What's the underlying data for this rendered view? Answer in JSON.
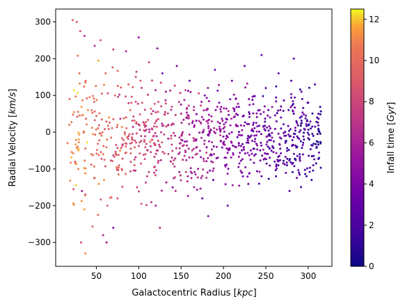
{
  "chart_data": {
    "type": "scatter",
    "title": "",
    "xlabel": "Galactocentric Radius [kpc]",
    "ylabel": "Radial Velocity [km/s]",
    "xlim": [
      2,
      328
    ],
    "ylim": [
      -365,
      335
    ],
    "xticks": [
      50,
      100,
      150,
      200,
      250,
      300
    ],
    "yticks": [
      -300,
      -200,
      -100,
      0,
      100,
      200,
      300
    ],
    "grid": false,
    "colormap": "plasma",
    "colorbar": {
      "label": "Infall time [Gyr]",
      "range": [
        0,
        12.5
      ],
      "ticks": [
        0,
        2,
        4,
        6,
        8,
        10,
        12
      ]
    },
    "point_count": 1000,
    "point_description": "approx. 1000 satellite points; infall time decreases with radius (yellow/orange near 20-90 kpc, magenta 90-200 kpc, purple/indigo 200-315 kpc); velocity spread widest at small radius (-330 to 305 km/s), narrowing to about -150 to 150 km/s at large radius",
    "points": [
      [
        22,
        305,
        9.5
      ],
      [
        27,
        300,
        9.0
      ],
      [
        31,
        275,
        8.5
      ],
      [
        36,
        262,
        6.5
      ],
      [
        28,
        208,
        10.5
      ],
      [
        30,
        160,
        10.0
      ],
      [
        37,
        135,
        11.0
      ],
      [
        42,
        95,
        10.8
      ],
      [
        18,
        20,
        10.2
      ],
      [
        16,
        -30,
        10.6
      ],
      [
        25,
        -80,
        9.8
      ],
      [
        23,
        -155,
        8.8
      ],
      [
        33,
        -160,
        5.5
      ],
      [
        37,
        -170,
        6.0
      ],
      [
        36,
        -210,
        11.5
      ],
      [
        32,
        -300,
        8.2
      ],
      [
        37,
        -330,
        11.0
      ],
      [
        40,
        60,
        11.2
      ],
      [
        44,
        -60,
        10.9
      ],
      [
        48,
        -125,
        9.7
      ],
      [
        52,
        -225,
        10.0
      ],
      [
        48,
        235,
        6.8
      ],
      [
        55,
        250,
        9.0
      ],
      [
        61,
        160,
        10.2
      ],
      [
        65,
        40,
        11.2
      ],
      [
        58,
        -60,
        10.5
      ],
      [
        63,
        -200,
        9.0
      ],
      [
        58,
        -280,
        6.5
      ],
      [
        62,
        -300,
        5.5
      ],
      [
        70,
        225,
        7.5
      ],
      [
        72,
        100,
        10.0
      ],
      [
        75,
        20,
        10.4
      ],
      [
        78,
        -50,
        11.0
      ],
      [
        80,
        -100,
        9.6
      ],
      [
        75,
        -180,
        8.4
      ],
      [
        70,
        -260,
        4.5
      ],
      [
        85,
        220,
        6.5
      ],
      [
        88,
        130,
        9.5
      ],
      [
        90,
        60,
        10.3
      ],
      [
        92,
        -20,
        10.0
      ],
      [
        95,
        -90,
        9.6
      ],
      [
        98,
        -150,
        8.2
      ],
      [
        100,
        258,
        5.0
      ],
      [
        102,
        140,
        9.0
      ],
      [
        104,
        80,
        8.8
      ],
      [
        106,
        5,
        9.2
      ],
      [
        108,
        -60,
        9.0
      ],
      [
        110,
        -120,
        7.5
      ],
      [
        112,
        190,
        8.2
      ],
      [
        115,
        50,
        7.6
      ],
      [
        118,
        -30,
        8.0
      ],
      [
        120,
        -200,
        6.3
      ],
      [
        122,
        228,
        4.5
      ],
      [
        125,
        -260,
        6.5
      ],
      [
        128,
        160,
        4.0
      ],
      [
        132,
        110,
        5.2
      ],
      [
        135,
        20,
        6.6
      ],
      [
        138,
        -80,
        6.0
      ],
      [
        140,
        -150,
        4.5
      ],
      [
        145,
        180,
        4.3
      ],
      [
        150,
        75,
        5.5
      ],
      [
        152,
        0,
        6.4
      ],
      [
        155,
        -50,
        6.8
      ],
      [
        158,
        -120,
        5.8
      ],
      [
        160,
        140,
        3.5
      ],
      [
        165,
        60,
        6.6
      ],
      [
        168,
        -20,
        6.2
      ],
      [
        170,
        -100,
        5.2
      ],
      [
        175,
        -180,
        2.8
      ],
      [
        178,
        100,
        4.2
      ],
      [
        180,
        30,
        6.0
      ],
      [
        185,
        -60,
        5.0
      ],
      [
        188,
        -130,
        3.0
      ],
      [
        190,
        170,
        3.8
      ],
      [
        195,
        80,
        4.1
      ],
      [
        200,
        10,
        4.4
      ],
      [
        202,
        -90,
        3.4
      ],
      [
        205,
        -200,
        2.2
      ],
      [
        210,
        140,
        3.2
      ],
      [
        215,
        50,
        4.6
      ],
      [
        218,
        -30,
        5.0
      ],
      [
        222,
        -110,
        3.3
      ],
      [
        225,
        180,
        2.6
      ],
      [
        230,
        90,
        3.9
      ],
      [
        235,
        20,
        4.1
      ],
      [
        238,
        -60,
        3.0
      ],
      [
        242,
        -140,
        2.4
      ],
      [
        245,
        210,
        3.3
      ],
      [
        250,
        120,
        2.7
      ],
      [
        255,
        40,
        3.5
      ],
      [
        258,
        -40,
        2.2
      ],
      [
        262,
        -120,
        1.9
      ],
      [
        265,
        160,
        3.1
      ],
      [
        268,
        70,
        2.5
      ],
      [
        272,
        -10,
        3.2
      ],
      [
        275,
        -90,
        1.5
      ],
      [
        278,
        -160,
        2.3
      ],
      [
        280,
        140,
        2.1
      ],
      [
        283,
        200,
        2.6
      ],
      [
        286,
        30,
        1.8
      ],
      [
        290,
        -60,
        1.2
      ],
      [
        292,
        110,
        2.8
      ],
      [
        295,
        -20,
        1.6
      ],
      [
        298,
        -120,
        1.4
      ],
      [
        300,
        80,
        2.2
      ],
      [
        303,
        10,
        2.0
      ],
      [
        306,
        -90,
        1.8
      ],
      [
        308,
        130,
        2.4
      ],
      [
        310,
        -40,
        1.0
      ],
      [
        312,
        50,
        2.2
      ],
      [
        304,
        -130,
        1.1
      ]
    ]
  }
}
